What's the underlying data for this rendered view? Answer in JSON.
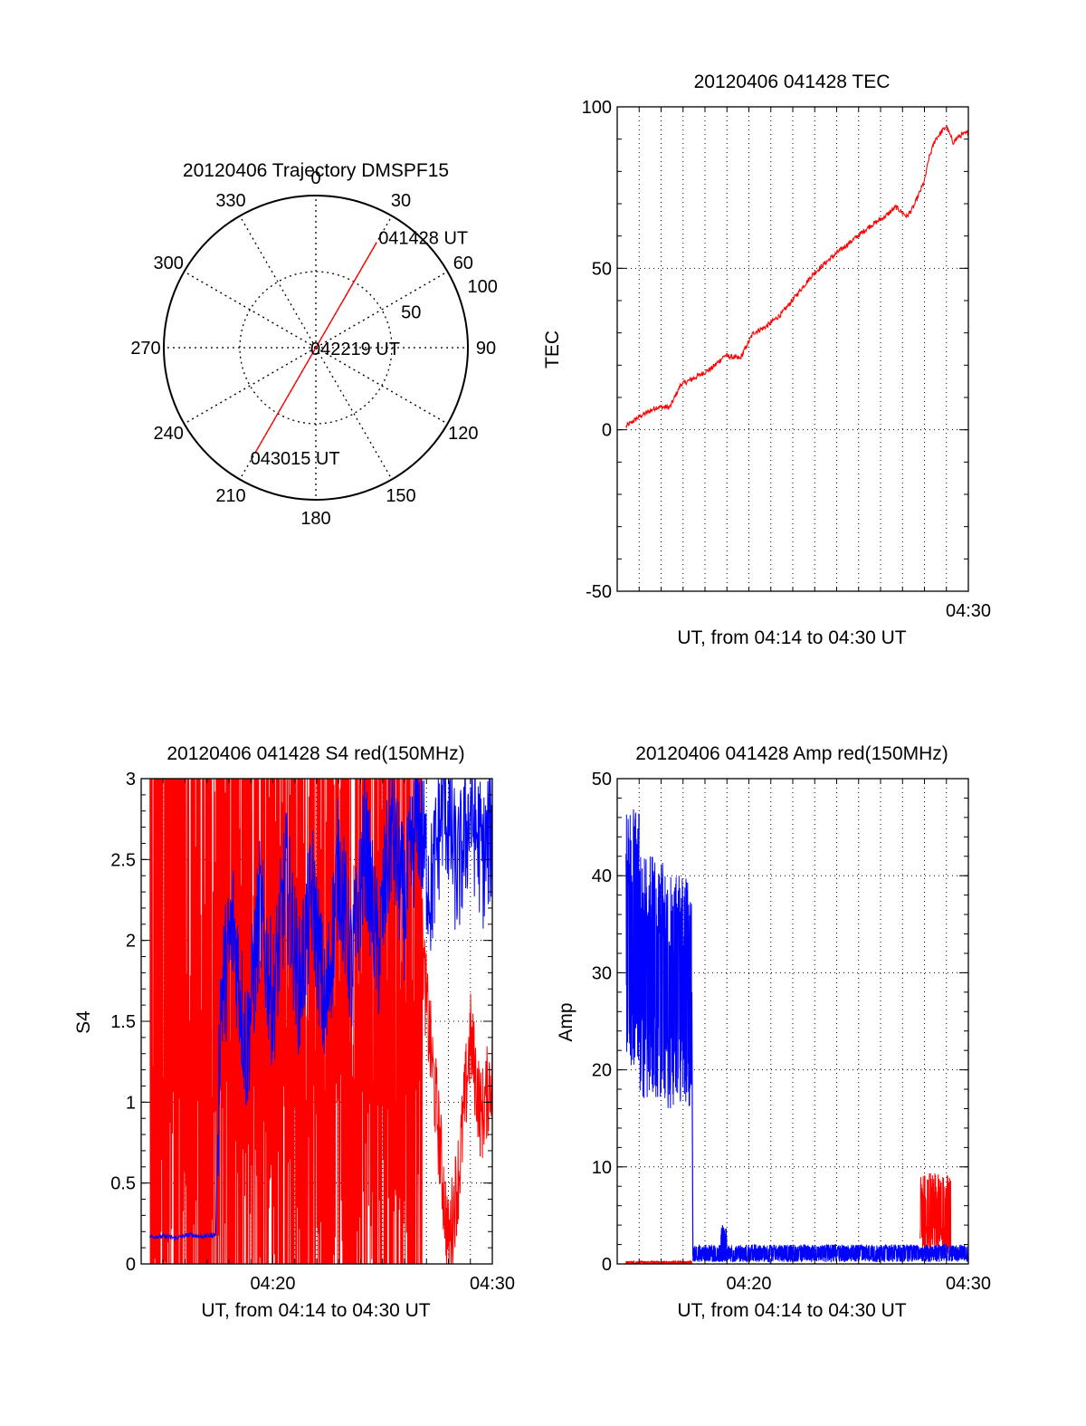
{
  "figure": {
    "background": "#ffffff",
    "trace_color_red": "#ff0000",
    "trace_color_blue": "#0000ff"
  },
  "chart_data": [
    {
      "id": "trajectory",
      "type": "polar",
      "title": "20120406 Trajectory DMSPF15",
      "angle_labels": [
        "0",
        "30",
        "60",
        "90",
        "120",
        "150",
        "180",
        "210",
        "240",
        "270",
        "300",
        "330"
      ],
      "angle_values": [
        0,
        30,
        60,
        90,
        120,
        150,
        180,
        210,
        240,
        270,
        300,
        330
      ],
      "radial_max": 100,
      "radial_ticks": [
        50,
        100
      ],
      "radial_tick_labels": [
        "50",
        "100"
      ],
      "track": {
        "color": "#ff0000",
        "start": {
          "azimuth": 30,
          "radius": 80,
          "label": "041428 UT"
        },
        "mid": {
          "azimuth": 0,
          "radius": 0,
          "label": "042219 UT"
        },
        "end": {
          "azimuth": 210,
          "radius": 79,
          "label": "043015 UT"
        }
      }
    },
    {
      "id": "tec",
      "type": "line",
      "title": "20120406 041428 TEC",
      "ylabel": "TEC",
      "xlabel": "UT, from 04:14 to 04:30 UT",
      "x_tick_labels": [
        "04:30"
      ],
      "x_tick_values": [
        16
      ],
      "xlim": [
        0,
        16
      ],
      "ylim": [
        -50,
        100
      ],
      "y_ticks": [
        -50,
        0,
        50,
        100
      ],
      "y_tick_labels": [
        "-50",
        "0",
        "50",
        "100"
      ],
      "grid": true,
      "series": [
        {
          "color": "#ff0000",
          "x": [
            0.4,
            1.0,
            1.8,
            2.4,
            2.9,
            3.5,
            4.3,
            4.9,
            5.6,
            6.2,
            6.8,
            7.5,
            8.2,
            8.9,
            9.7,
            10.6,
            11.5,
            12.2,
            12.7,
            13.2,
            13.5,
            14.0,
            14.2,
            14.5,
            15.0,
            15.3,
            15.6,
            16.0
          ],
          "y": [
            1,
            4,
            7,
            7,
            14,
            16,
            19,
            23,
            22,
            30,
            32,
            36,
            42,
            48,
            53,
            58,
            63,
            66,
            69,
            66,
            69,
            77,
            84,
            90,
            94,
            89,
            91,
            92
          ]
        }
      ]
    },
    {
      "id": "s4",
      "type": "line",
      "title": "20120406 041428 S4 red(150MHz)",
      "ylabel": "S4",
      "xlabel": "UT, from 04:14 to 04:30 UT",
      "x_tick_labels": [
        "04:20",
        "04:30"
      ],
      "x_tick_values": [
        6,
        16
      ],
      "xlim": [
        0,
        16
      ],
      "ylim": [
        0,
        3
      ],
      "y_ticks": [
        0,
        0.5,
        1,
        1.5,
        2,
        2.5,
        3
      ],
      "y_tick_labels": [
        "0",
        "0.5",
        "1",
        "1.5",
        "2",
        "2.5",
        "3"
      ],
      "grid": true,
      "series": [
        {
          "color": "#ff0000",
          "description_x_range": [
            0.4,
            16
          ],
          "x": [
            0.4,
            0.6,
            0.9,
            1.2,
            1.5,
            1.9,
            2.2,
            2.6,
            2.9,
            3.3,
            3.6,
            4.0,
            4.4,
            4.8,
            5.3,
            5.8,
            6.4,
            7.0,
            7.6,
            8.2,
            8.8,
            9.4,
            10.0,
            10.6,
            11.2,
            11.8,
            12.4,
            13.0,
            13.5,
            14.0,
            14.5,
            15.0,
            15.5,
            16.0
          ],
          "y": [
            3,
            0,
            3,
            0,
            3,
            0,
            3,
            0,
            3,
            0,
            3,
            0,
            3,
            0,
            3,
            0.3,
            2.8,
            0.2,
            2.9,
            0.4,
            3,
            0.1,
            2.7,
            0.6,
            2.5,
            1.0,
            2.8,
            1.6,
            0.9,
            0.1,
            0.6,
            1.4,
            0.9,
            1.2
          ]
        },
        {
          "color": "#0000ff",
          "x": [
            0.4,
            1.0,
            1.6,
            2.2,
            2.8,
            3.4,
            3.6,
            4.2,
            4.8,
            5.4,
            6.0,
            6.6,
            7.2,
            7.8,
            8.4,
            9.0,
            9.6,
            10.2,
            10.8,
            11.4,
            12.0,
            12.6,
            13.2,
            13.8,
            14.4,
            15.0,
            15.6,
            16.0
          ],
          "y": [
            0.17,
            0.17,
            0.16,
            0.18,
            0.17,
            0.18,
            1.6,
            2.1,
            1.3,
            2.2,
            1.6,
            2.4,
            1.7,
            2.3,
            1.5,
            2.5,
            1.8,
            2.6,
            1.9,
            2.7,
            2.2,
            2.8,
            2.3,
            2.9,
            2.4,
            2.8,
            2.5,
            2.7
          ]
        }
      ]
    },
    {
      "id": "amp",
      "type": "line",
      "title": "20120406 041428 Amp red(150MHz)",
      "ylabel": "Amp",
      "xlabel": "UT, from 04:14 to 04:30 UT",
      "x_tick_labels": [
        "04:20",
        "04:30"
      ],
      "x_tick_values": [
        6,
        16
      ],
      "xlim": [
        0,
        16
      ],
      "ylim": [
        0,
        50
      ],
      "y_ticks": [
        0,
        10,
        20,
        30,
        40,
        50
      ],
      "y_tick_labels": [
        "0",
        "10",
        "20",
        "30",
        "40",
        "50"
      ],
      "grid": true,
      "series": [
        {
          "color": "#ff0000",
          "x": [
            0.4,
            3.4,
            5.0,
            10.0,
            13.8,
            14.0,
            14.2,
            14.6,
            15.0,
            15.3,
            15.6,
            16.0
          ],
          "y": [
            0.1,
            0.1,
            0.2,
            0.3,
            0.5,
            8,
            3,
            9,
            8,
            7,
            1,
            0.5
          ],
          "envelope": [
            {
              "x_start": 0.4,
              "x_end": 3.4,
              "low": 0.0,
              "high": 0.3
            },
            {
              "x_start": 13.8,
              "x_end": 15.2,
              "low": 1.0,
              "high": 9.5
            }
          ]
        },
        {
          "color": "#0000ff",
          "x": [
            0.4,
            3.4,
            3.45,
            16.0
          ],
          "y": [
            30,
            28,
            0.8,
            1.0
          ],
          "envelope": [
            {
              "x_start": 0.4,
              "x_end": 1.0,
              "low": 20,
              "high": 47
            },
            {
              "x_start": 1.0,
              "x_end": 2.2,
              "low": 17,
              "high": 42
            },
            {
              "x_start": 2.2,
              "x_end": 3.4,
              "low": 16,
              "high": 40
            },
            {
              "x_start": 3.45,
              "x_end": 16.0,
              "low": 0.2,
              "high": 2.0
            },
            {
              "x_start": 4.7,
              "x_end": 5.0,
              "low": 0.2,
              "high": 4.0
            }
          ]
        }
      ]
    }
  ]
}
